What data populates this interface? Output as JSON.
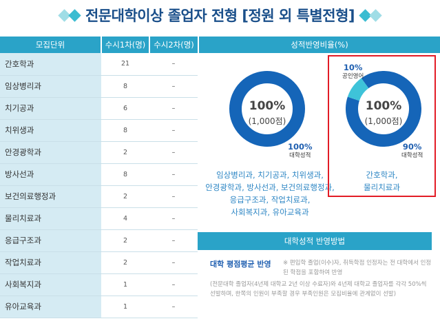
{
  "title": "전문대학이상 졸업자 전형 [정원 외 특별전형]",
  "table": {
    "headers": [
      "모집단위",
      "수시1차(명)",
      "수시2차(명)"
    ],
    "rows": [
      {
        "name": "간호학과",
        "r1": "21",
        "r2": "–"
      },
      {
        "name": "임상병리과",
        "r1": "8",
        "r2": "–"
      },
      {
        "name": "치기공과",
        "r1": "6",
        "r2": "–"
      },
      {
        "name": "치위생과",
        "r1": "8",
        "r2": "–"
      },
      {
        "name": "안경광학과",
        "r1": "2",
        "r2": "–"
      },
      {
        "name": "방사선과",
        "r1": "8",
        "r2": "–"
      },
      {
        "name": "보건의료행정과",
        "r1": "2",
        "r2": "–"
      },
      {
        "name": "물리치료과",
        "r1": "4",
        "r2": "–"
      },
      {
        "name": "응급구조과",
        "r1": "2",
        "r2": "–"
      },
      {
        "name": "작업치료과",
        "r1": "2",
        "r2": "–"
      },
      {
        "name": "사회복지과",
        "r1": "1",
        "r2": "–"
      },
      {
        "name": "유아교육과",
        "r1": "1",
        "r2": "–"
      }
    ]
  },
  "ratio": {
    "header": "성적반영비율(%)",
    "donut1": {
      "center_pct": "100%",
      "center_points": "(1,000점)",
      "label_pct": "100%",
      "label_sub": "대학성적",
      "segments": [
        {
          "name": "대학성적",
          "value": 100,
          "color": "#1565b8"
        }
      ],
      "depts": [
        "임상병리과, 치기공과, 치위생과,",
        "안경광학과, 방사선과, 보건의료행정과,",
        "응급구조과, 작업치료과,",
        "사회복지과, 유아교육과"
      ]
    },
    "donut2": {
      "center_pct": "100%",
      "center_points": "(1,000점)",
      "label_pct": "90%",
      "label_sub": "대학성적",
      "label2_pct": "10%",
      "label2_sub": "공인영어",
      "segments": [
        {
          "name": "대학성적",
          "value": 90,
          "color": "#1565b8"
        },
        {
          "name": "공인영어",
          "value": 10,
          "color": "#3ec3d9"
        }
      ],
      "depts": [
        "간호학과,",
        "물리치료과"
      ]
    }
  },
  "method": {
    "header": "대학성적 반영방법",
    "title": "대학 평점평균 반영",
    "note": "※ 편입학 졸업(이수)자, 취득학점 인정자는 전 대학에서 인정된 학점을 포함하여 반영",
    "detail": "(전문대학 졸업자(4년제 대학교 2년 이상 수료자)와 4년제 대학교 졸업자를 각각 50%씩 선발하며, 한쪽의 인원이 부족할 경우 부족인원은 모집비율에 관계없이 선발)"
  },
  "colors": {
    "accent": "#2aa3c8",
    "primary": "#1565b8",
    "secondary": "#3ec3d9",
    "highlight": "#e21b25"
  }
}
